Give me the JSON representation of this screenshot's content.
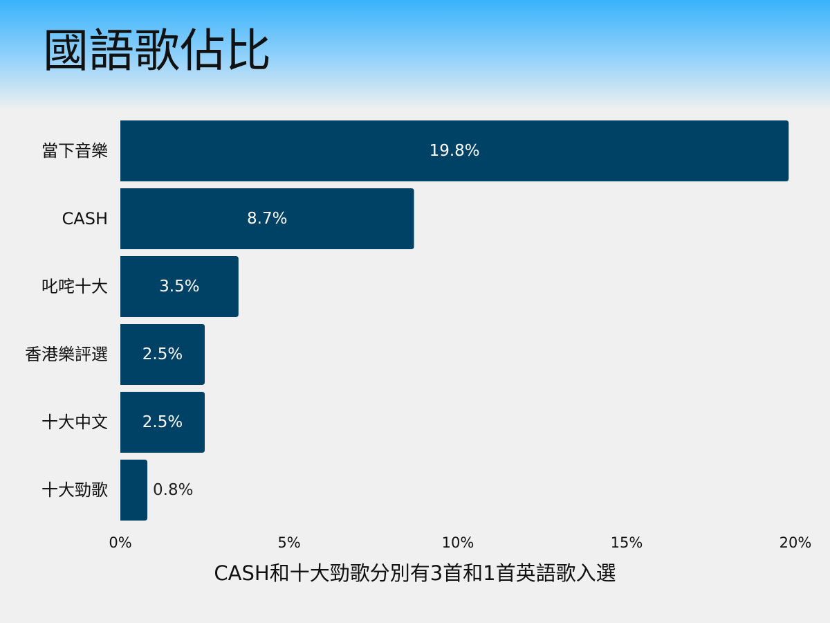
{
  "page": {
    "title": "國語歌佔比",
    "footnote": "CASH和十大勁歌分別有3首和1首英語歌入選"
  },
  "chart_data": {
    "type": "bar",
    "orientation": "horizontal",
    "title": "國語歌佔比",
    "categories": [
      "當下音樂",
      "CASH",
      "叱咤十大",
      "香港樂評選",
      "十大中文",
      "十大勁歌"
    ],
    "values": [
      19.8,
      8.7,
      3.5,
      2.5,
      2.5,
      0.8
    ],
    "value_labels": [
      "19.8%",
      "8.7%",
      "3.5%",
      "2.5%",
      "2.5%",
      "0.8%"
    ],
    "xlim": [
      0,
      20
    ],
    "x_ticks": [
      0,
      5,
      10,
      15,
      20
    ],
    "x_tick_labels": [
      "0%",
      "5%",
      "10%",
      "15%",
      "20%"
    ],
    "xlabel": "",
    "ylabel": "",
    "grid": false,
    "legend": "none",
    "annotation": "CASH和十大勁歌分別有3首和1首英語歌入選",
    "colors": {
      "bar": "#004266",
      "label_inside": "#ffffff",
      "label_outside": "#222222",
      "text": "#111111",
      "background": "#f0f0f0",
      "header_top": "#39b3fb"
    }
  }
}
